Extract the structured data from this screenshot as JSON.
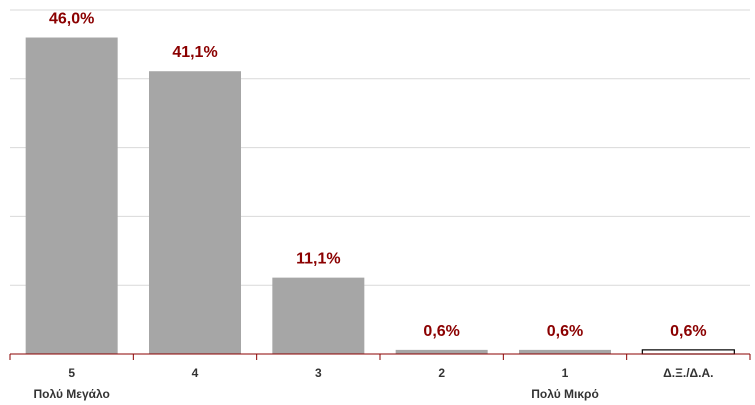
{
  "chart_data": {
    "type": "bar",
    "categories": [
      "5",
      "4",
      "3",
      "2",
      "1",
      "Δ.Ξ./Δ.Α."
    ],
    "category_sublabels": [
      "Πολύ Μεγάλο",
      "",
      "",
      "",
      "Πολύ Μικρό",
      ""
    ],
    "values": [
      46.0,
      41.1,
      11.1,
      0.6,
      0.6,
      0.6
    ],
    "data_labels": [
      "46,0%",
      "41,1%",
      "11,1%",
      "0,6%",
      "0,6%",
      "0,6%"
    ],
    "title": "",
    "xlabel": "",
    "ylabel": "",
    "ylim": [
      0,
      50
    ],
    "grid": true,
    "legend": "none",
    "colors": {
      "bar": "#a6a6a6",
      "last_bar_fill": "#ffffff",
      "last_bar_stroke": "#000000",
      "data_label": "#8b0000",
      "axis": "#8b0000",
      "grid": "#d9d9d9"
    }
  }
}
